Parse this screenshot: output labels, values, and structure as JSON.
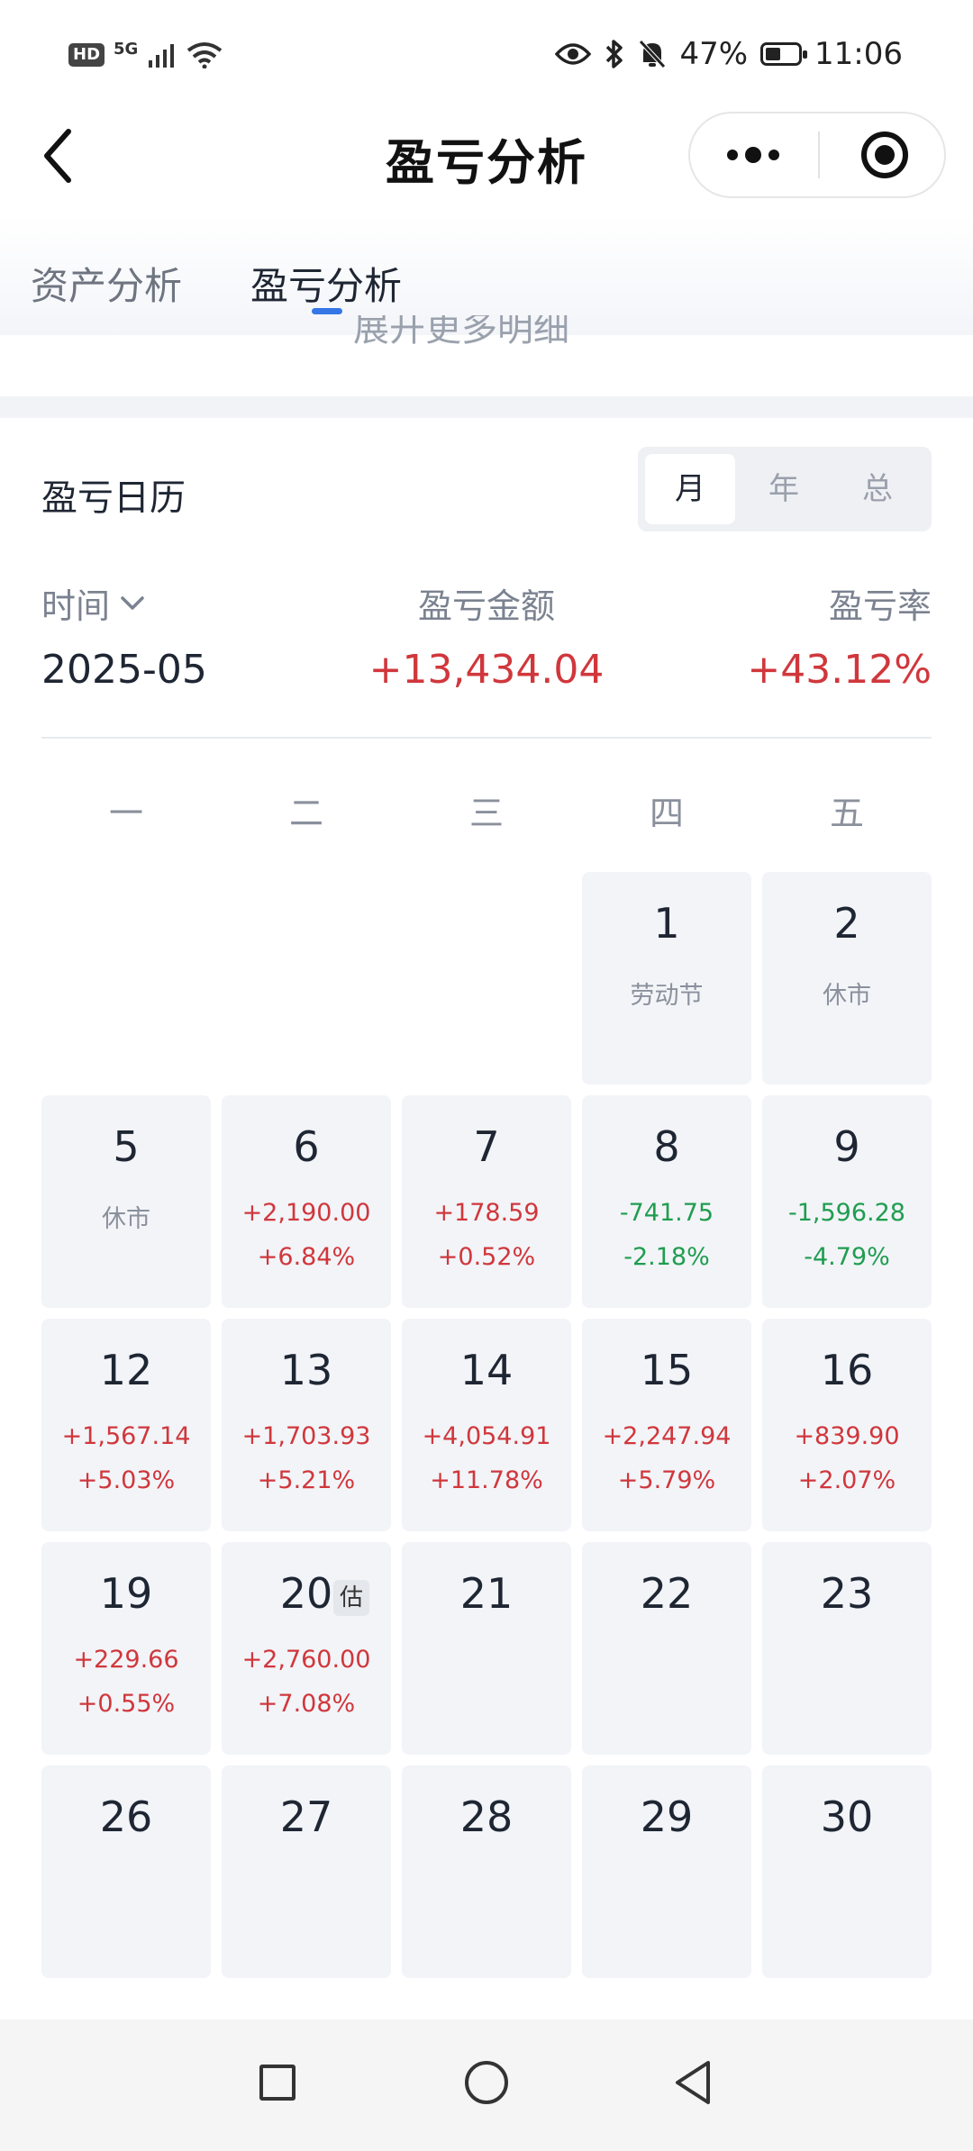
{
  "status_bar": {
    "hd": "HD",
    "network": "5G",
    "battery_text": "47%",
    "battery_level": 0.47,
    "time": "11:06",
    "icons": [
      "signal-icon",
      "wifi-icon",
      "eye-icon",
      "bluetooth-icon",
      "mute-bell-icon",
      "battery-icon"
    ]
  },
  "nav": {
    "title": "盈亏分析",
    "back_icon": "chevron-left-icon",
    "more_icon": "more-dots-icon",
    "close_icon": "target-close-icon"
  },
  "tabs": [
    {
      "label": "资产分析",
      "active": false
    },
    {
      "label": "盈亏分析",
      "active": true
    }
  ],
  "peek_text": "展开更多明细",
  "section": {
    "title": "盈亏日历",
    "segments": [
      {
        "label": "月",
        "active": true
      },
      {
        "label": "年",
        "active": false
      },
      {
        "label": "总",
        "active": false
      }
    ]
  },
  "summary": {
    "time_label": "时间",
    "time_value": "2025-05",
    "amount_label": "盈亏金额",
    "amount_value": "+13,434.04",
    "rate_label": "盈亏率",
    "rate_value": "+43.12%"
  },
  "weekdays": [
    "一",
    "二",
    "三",
    "四",
    "五"
  ],
  "calendar": {
    "estimate_badge": "估",
    "days": [
      {
        "day": "1",
        "note": "劳动节"
      },
      {
        "day": "2",
        "note": "休市"
      },
      {
        "day": "5",
        "note": "休市"
      },
      {
        "day": "6",
        "amount": "+2,190.00",
        "rate": "+6.84%"
      },
      {
        "day": "7",
        "amount": "+178.59",
        "rate": "+0.52%"
      },
      {
        "day": "8",
        "amount": "-741.75",
        "rate": "-2.18%"
      },
      {
        "day": "9",
        "amount": "-1,596.28",
        "rate": "-4.79%"
      },
      {
        "day": "12",
        "amount": "+1,567.14",
        "rate": "+5.03%"
      },
      {
        "day": "13",
        "amount": "+1,703.93",
        "rate": "+5.21%"
      },
      {
        "day": "14",
        "amount": "+4,054.91",
        "rate": "+11.78%"
      },
      {
        "day": "15",
        "amount": "+2,247.94",
        "rate": "+5.79%"
      },
      {
        "day": "16",
        "amount": "+839.90",
        "rate": "+2.07%"
      },
      {
        "day": "19",
        "amount": "+229.66",
        "rate": "+0.55%"
      },
      {
        "day": "20",
        "amount": "+2,760.00",
        "rate": "+7.08%",
        "estimate": true
      },
      {
        "day": "21"
      },
      {
        "day": "22"
      },
      {
        "day": "23"
      },
      {
        "day": "26"
      },
      {
        "day": "27"
      },
      {
        "day": "28"
      },
      {
        "day": "29"
      },
      {
        "day": "30"
      }
    ]
  },
  "colors": {
    "gain": "#d0373c",
    "loss": "#1f9d4f",
    "accent": "#3577e5"
  },
  "bottom_nav": [
    "square-recent-icon",
    "circle-home-icon",
    "triangle-back-icon"
  ]
}
